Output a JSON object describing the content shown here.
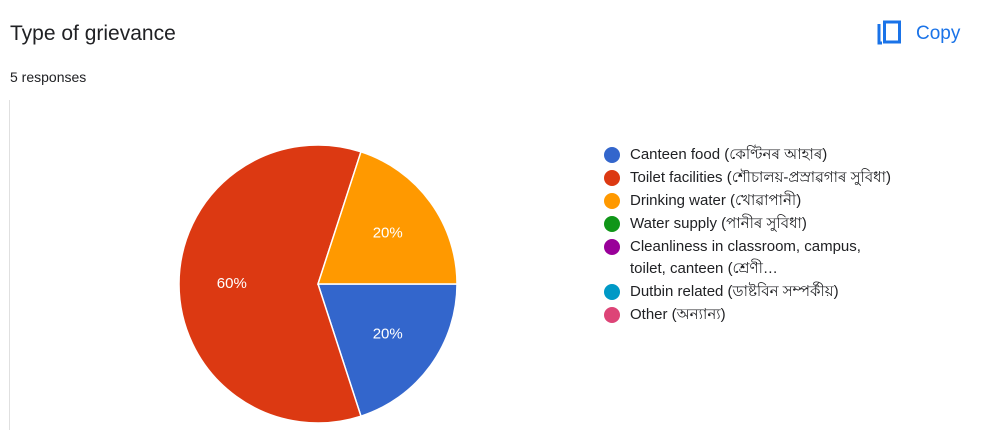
{
  "header": {
    "copy": "Copy"
  },
  "chart_data": {
    "type": "pie",
    "title": "Type of grievance",
    "subtitle": "5 responses",
    "categories": [
      "Canteen food (কেণ্টিনৰ আহাৰ)",
      "Toilet facilities (শৌচালয়-প্ৰস্ৰাৱগাৰ সুবিধা)",
      "Drinking water (খোৱাপানী)",
      "Water supply (পানীৰ সুবিধা)",
      "Cleanliness in classroom, campus, toilet, canteen (শ্ৰেণী…",
      "Dutbin related (ডাষ্টবিন সম্পৰ্কীয়)",
      "Other (অন্যান্য)"
    ],
    "values": [
      20,
      60,
      20,
      0,
      0,
      0,
      0
    ],
    "value_labels": [
      "20%",
      "60%",
      "20%",
      null,
      null,
      null,
      null
    ],
    "colors": [
      "#3366cc",
      "#dc3912",
      "#ff9900",
      "#109618",
      "#990099",
      "#0099c6",
      "#dd4477"
    ],
    "legend": "right"
  }
}
